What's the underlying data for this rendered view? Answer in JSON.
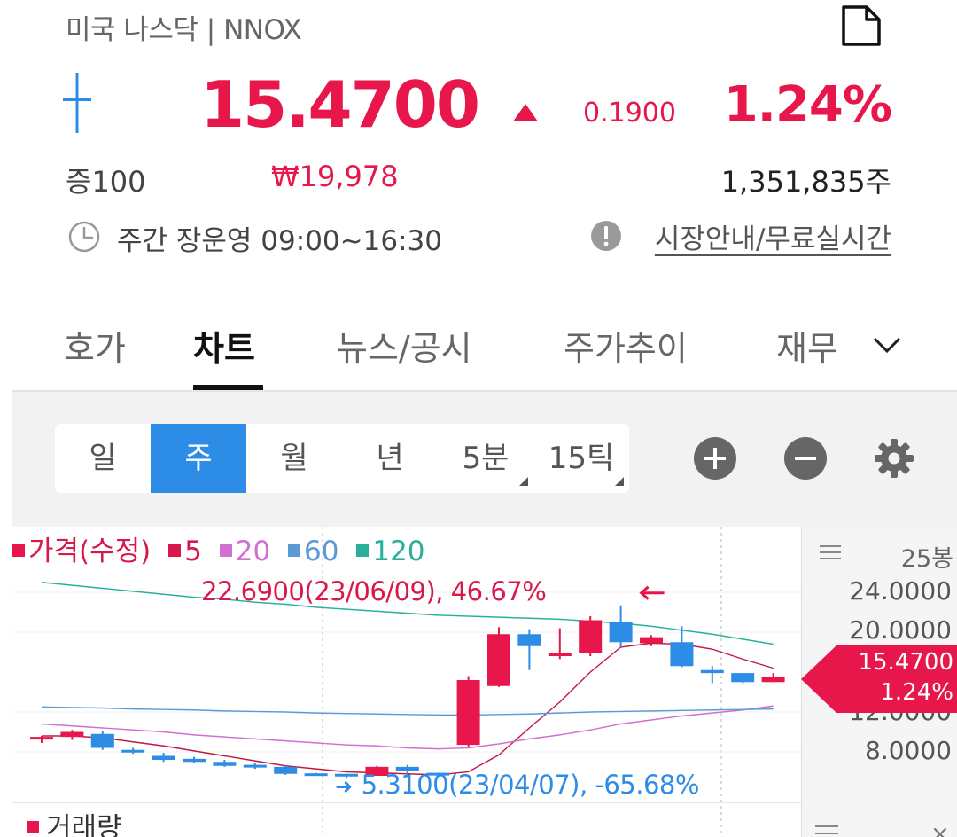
{
  "header": {
    "title": "미국 나스닥 | NNOX",
    "doc_icon": "document-icon"
  },
  "quote": {
    "price": "15.4700",
    "direction_icon": "triangle-up-icon",
    "change": "0.1900",
    "rate": "1.24%",
    "margin": "증100",
    "krw_price": "₩19,978",
    "volume": "1,351,835주",
    "accent_color": "#e8174b"
  },
  "market": {
    "hours": "주간 장운영 09:00~16:30",
    "link": "시장안내/무료실시간"
  },
  "tabs": [
    {
      "label": "호가"
    },
    {
      "label": "차트",
      "active": true
    },
    {
      "label": "뉴스/공시"
    },
    {
      "label": "주가추이"
    },
    {
      "label": "재무"
    }
  ],
  "periods": [
    {
      "label": "일"
    },
    {
      "label": "주",
      "active": true
    },
    {
      "label": "월"
    },
    {
      "label": "년"
    },
    {
      "label": "5분",
      "dropdown": true
    },
    {
      "label": "15틱",
      "dropdown": true
    }
  ],
  "legend": {
    "price_label": "가격(수정)",
    "ma": [
      {
        "label": "5",
        "color": "#d8174b"
      },
      {
        "label": "20",
        "color": "#d070d0"
      },
      {
        "label": "60",
        "color": "#5b9bd5"
      },
      {
        "label": "120",
        "color": "#2ab09a"
      }
    ]
  },
  "axis": {
    "count_label": "25봉",
    "ticks": [
      "24.0000",
      "20.0000",
      "12.0000",
      "8.0000"
    ],
    "current_price": "15.4700",
    "current_rate": "1.24%"
  },
  "annotations": {
    "high": "22.6900(23/06/09), 46.67%",
    "low": "5.3100(23/04/07), -65.68%"
  },
  "volume_panel": {
    "title": "거래량",
    "close": "×"
  },
  "chart_data": {
    "type": "candlestick",
    "period": "weekly",
    "candles": [
      {
        "open": 9.3,
        "high": 9.6,
        "low": 8.9,
        "close": 9.5
      },
      {
        "open": 9.5,
        "high": 10.2,
        "low": 9.2,
        "close": 10.0
      },
      {
        "open": 9.8,
        "high": 10.1,
        "low": 8.2,
        "close": 8.4
      },
      {
        "open": 8.2,
        "high": 8.4,
        "low": 7.8,
        "close": 8.0
      },
      {
        "open": 7.6,
        "high": 7.9,
        "low": 7.0,
        "close": 7.2
      },
      {
        "open": 7.3,
        "high": 7.5,
        "low": 6.9,
        "close": 7.0
      },
      {
        "open": 7.0,
        "high": 7.2,
        "low": 6.5,
        "close": 6.6
      },
      {
        "open": 6.7,
        "high": 6.9,
        "low": 6.3,
        "close": 6.6
      },
      {
        "open": 6.5,
        "high": 6.6,
        "low": 5.7,
        "close": 5.8
      },
      {
        "open": 5.85,
        "high": 5.9,
        "low": 5.7,
        "close": 5.8
      },
      {
        "open": 5.8,
        "high": 5.8,
        "low": 5.31,
        "close": 5.6
      },
      {
        "open": 5.6,
        "high": 6.6,
        "low": 5.6,
        "close": 6.5
      },
      {
        "open": 6.5,
        "high": 6.7,
        "low": 5.8,
        "close": 6.1
      },
      {
        "open": 5.9,
        "high": 5.9,
        "low": 5.6,
        "close": 5.7
      },
      {
        "open": 8.7,
        "high": 15.6,
        "low": 8.5,
        "close": 15.2
      },
      {
        "open": 14.6,
        "high": 20.5,
        "low": 14.5,
        "close": 19.8
      },
      {
        "open": 19.8,
        "high": 20.3,
        "low": 16.2,
        "close": 18.6
      },
      {
        "open": 17.6,
        "high": 20.4,
        "low": 17.3,
        "close": 17.9
      },
      {
        "open": 17.9,
        "high": 21.6,
        "low": 17.6,
        "close": 21.2
      },
      {
        "open": 21.0,
        "high": 22.69,
        "low": 18.5,
        "close": 19.0
      },
      {
        "open": 18.9,
        "high": 19.7,
        "low": 18.6,
        "close": 19.5
      },
      {
        "open": 19.0,
        "high": 20.6,
        "low": 16.5,
        "close": 16.6
      },
      {
        "open": 16.2,
        "high": 16.6,
        "low": 14.9,
        "close": 15.9
      },
      {
        "open": 15.9,
        "high": 15.9,
        "low": 14.9,
        "close": 15.0
      },
      {
        "open": 15.0,
        "high": 15.9,
        "low": 15.0,
        "close": 15.47
      }
    ],
    "ma": {
      "5": [
        9.6,
        9.6,
        9.4,
        9.0,
        8.6,
        8.1,
        7.6,
        7.1,
        6.6,
        6.3,
        6.0,
        5.9,
        5.8,
        5.7,
        6.0,
        7.7,
        10.4,
        13.0,
        16.0,
        18.5,
        18.9,
        18.8,
        18.3,
        17.3,
        16.4
      ],
      "20": [
        10.8,
        10.6,
        10.4,
        10.2,
        10.0,
        9.7,
        9.5,
        9.3,
        9.1,
        8.9,
        8.7,
        8.6,
        8.4,
        8.3,
        8.4,
        8.8,
        9.3,
        9.7,
        10.2,
        10.8,
        11.2,
        11.6,
        11.9,
        12.2,
        12.6
      ],
      "60": [
        12.5,
        12.45,
        12.4,
        12.3,
        12.25,
        12.2,
        12.1,
        12.05,
        12.0,
        11.9,
        11.85,
        11.8,
        11.75,
        11.7,
        11.7,
        11.75,
        11.8,
        11.9,
        12.0,
        12.05,
        12.1,
        12.15,
        12.2,
        12.25,
        12.3
      ],
      "120": [
        25.0,
        24.7,
        24.4,
        24.1,
        23.8,
        23.5,
        23.3,
        23.0,
        22.8,
        22.5,
        22.3,
        22.1,
        21.9,
        21.7,
        21.6,
        21.5,
        21.4,
        21.3,
        21.1,
        20.9,
        20.6,
        20.2,
        19.8,
        19.3,
        18.8
      ]
    },
    "y_axis_ticks": [
      24,
      20,
      12,
      8
    ],
    "high": {
      "value": 22.69,
      "date": "23/06/09",
      "pct": 46.67
    },
    "low": {
      "value": 5.31,
      "date": "23/04/07",
      "pct": -65.68
    },
    "colors": {
      "up": "#e8174b",
      "down": "#2d8ce6"
    }
  }
}
